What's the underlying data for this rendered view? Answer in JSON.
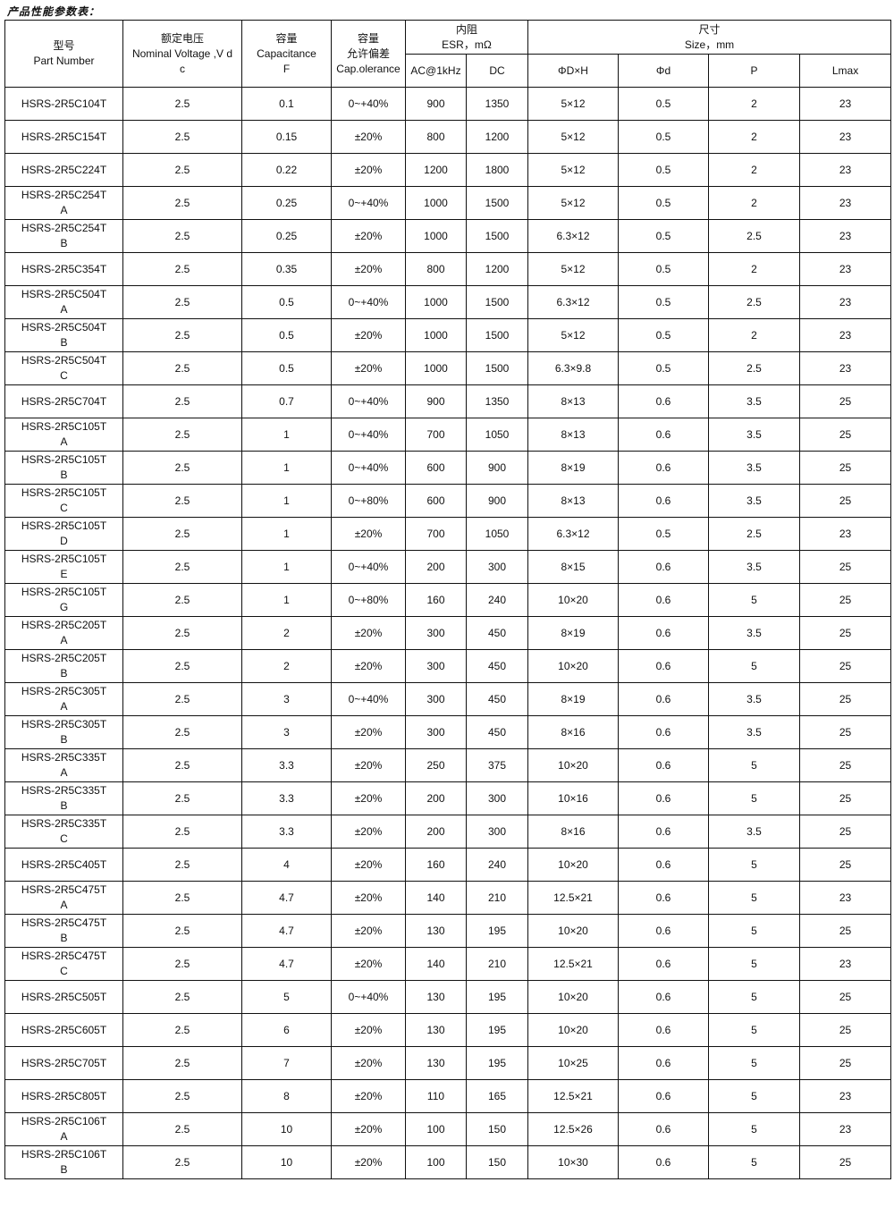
{
  "title": "产品性能参数表：",
  "header": {
    "part": [
      "型号",
      "Part Number"
    ],
    "voltage": [
      "额定电压",
      "Nominal Voltage ,V d",
      "c"
    ],
    "capacitance": [
      "容量",
      "Capacitance",
      "F"
    ],
    "tolerance": [
      "容量",
      "允许偏差",
      "Cap.olerance"
    ],
    "esr": [
      "内阻",
      "ESR，mΩ"
    ],
    "esr_ac": "AC@1kHz",
    "esr_dc": "DC",
    "size": [
      "尺寸",
      "Size，mm"
    ],
    "size_dh": "ΦD×H",
    "size_d": "Φd",
    "size_p": "P",
    "size_lmax": "Lmax"
  },
  "rows": [
    [
      "HSRS-2R5C104T",
      "2.5",
      "0.1",
      "0~+40%",
      "900",
      "1350",
      "5×12",
      "0.5",
      "2",
      "23"
    ],
    [
      "HSRS-2R5C154T",
      "2.5",
      "0.15",
      "±20%",
      "800",
      "1200",
      "5×12",
      "0.5",
      "2",
      "23"
    ],
    [
      "HSRS-2R5C224T",
      "2.5",
      "0.22",
      "±20%",
      "1200",
      "1800",
      "5×12",
      "0.5",
      "2",
      "23"
    ],
    [
      "HSRS-2R5C254TA",
      "2.5",
      "0.25",
      "0~+40%",
      "1000",
      "1500",
      "5×12",
      "0.5",
      "2",
      "23"
    ],
    [
      "HSRS-2R5C254TB",
      "2.5",
      "0.25",
      "±20%",
      "1000",
      "1500",
      "6.3×12",
      "0.5",
      "2.5",
      "23"
    ],
    [
      "HSRS-2R5C354T",
      "2.5",
      "0.35",
      "±20%",
      "800",
      "1200",
      "5×12",
      "0.5",
      "2",
      "23"
    ],
    [
      "HSRS-2R5C504TA",
      "2.5",
      "0.5",
      "0~+40%",
      "1000",
      "1500",
      "6.3×12",
      "0.5",
      "2.5",
      "23"
    ],
    [
      "HSRS-2R5C504TB",
      "2.5",
      "0.5",
      "±20%",
      "1000",
      "1500",
      "5×12",
      "0.5",
      "2",
      "23"
    ],
    [
      "HSRS-2R5C504TC",
      "2.5",
      "0.5",
      "±20%",
      "1000",
      "1500",
      "6.3×9.8",
      "0.5",
      "2.5",
      "23"
    ],
    [
      "HSRS-2R5C704T",
      "2.5",
      "0.7",
      "0~+40%",
      "900",
      "1350",
      "8×13",
      "0.6",
      "3.5",
      "25"
    ],
    [
      "HSRS-2R5C105TA",
      "2.5",
      "1",
      "0~+40%",
      "700",
      "1050",
      "8×13",
      "0.6",
      "3.5",
      "25"
    ],
    [
      "HSRS-2R5C105TB",
      "2.5",
      "1",
      "0~+40%",
      "600",
      "900",
      "8×19",
      "0.6",
      "3.5",
      "25"
    ],
    [
      "HSRS-2R5C105TC",
      "2.5",
      "1",
      "0~+80%",
      "600",
      "900",
      "8×13",
      "0.6",
      "3.5",
      "25"
    ],
    [
      "HSRS-2R5C105TD",
      "2.5",
      "1",
      "±20%",
      "700",
      "1050",
      "6.3×12",
      "0.5",
      "2.5",
      "23"
    ],
    [
      "HSRS-2R5C105TE",
      "2.5",
      "1",
      "0~+40%",
      "200",
      "300",
      "8×15",
      "0.6",
      "3.5",
      "25"
    ],
    [
      "HSRS-2R5C105TG",
      "2.5",
      "1",
      "0~+80%",
      "160",
      "240",
      "10×20",
      "0.6",
      "5",
      "25"
    ],
    [
      "HSRS-2R5C205TA",
      "2.5",
      "2",
      "±20%",
      "300",
      "450",
      "8×19",
      "0.6",
      "3.5",
      "25"
    ],
    [
      "HSRS-2R5C205TB",
      "2.5",
      "2",
      "±20%",
      "300",
      "450",
      "10×20",
      "0.6",
      "5",
      "25"
    ],
    [
      "HSRS-2R5C305TA",
      "2.5",
      "3",
      "0~+40%",
      "300",
      "450",
      "8×19",
      "0.6",
      "3.5",
      "25"
    ],
    [
      "HSRS-2R5C305TB",
      "2.5",
      "3",
      "±20%",
      "300",
      "450",
      "8×16",
      "0.6",
      "3.5",
      "25"
    ],
    [
      "HSRS-2R5C335TA",
      "2.5",
      "3.3",
      "±20%",
      "250",
      "375",
      "10×20",
      "0.6",
      "5",
      "25"
    ],
    [
      "HSRS-2R5C335TB",
      "2.5",
      "3.3",
      "±20%",
      "200",
      "300",
      "10×16",
      "0.6",
      "5",
      "25"
    ],
    [
      "HSRS-2R5C335TC",
      "2.5",
      "3.3",
      "±20%",
      "200",
      "300",
      "8×16",
      "0.6",
      "3.5",
      "25"
    ],
    [
      "HSRS-2R5C405T",
      "2.5",
      "4",
      "±20%",
      "160",
      "240",
      "10×20",
      "0.6",
      "5",
      "25"
    ],
    [
      "HSRS-2R5C475TA",
      "2.5",
      "4.7",
      "±20%",
      "140",
      "210",
      "12.5×21",
      "0.6",
      "5",
      "23"
    ],
    [
      "HSRS-2R5C475TB",
      "2.5",
      "4.7",
      "±20%",
      "130",
      "195",
      "10×20",
      "0.6",
      "5",
      "25"
    ],
    [
      "HSRS-2R5C475TC",
      "2.5",
      "4.7",
      "±20%",
      "140",
      "210",
      "12.5×21",
      "0.6",
      "5",
      "23"
    ],
    [
      "HSRS-2R5C505T",
      "2.5",
      "5",
      "0~+40%",
      "130",
      "195",
      "10×20",
      "0.6",
      "5",
      "25"
    ],
    [
      "HSRS-2R5C605T",
      "2.5",
      "6",
      "±20%",
      "130",
      "195",
      "10×20",
      "0.6",
      "5",
      "25"
    ],
    [
      "HSRS-2R5C705T",
      "2.5",
      "7",
      "±20%",
      "130",
      "195",
      "10×25",
      "0.6",
      "5",
      "25"
    ],
    [
      "HSRS-2R5C805T",
      "2.5",
      "8",
      "±20%",
      "110",
      "165",
      "12.5×21",
      "0.6",
      "5",
      "23"
    ],
    [
      "HSRS-2R5C106TA",
      "2.5",
      "10",
      "±20%",
      "100",
      "150",
      "12.5×26",
      "0.6",
      "5",
      "23"
    ],
    [
      "HSRS-2R5C106TB",
      "2.5",
      "10",
      "±20%",
      "100",
      "150",
      "10×30",
      "0.6",
      "5",
      "25"
    ]
  ]
}
